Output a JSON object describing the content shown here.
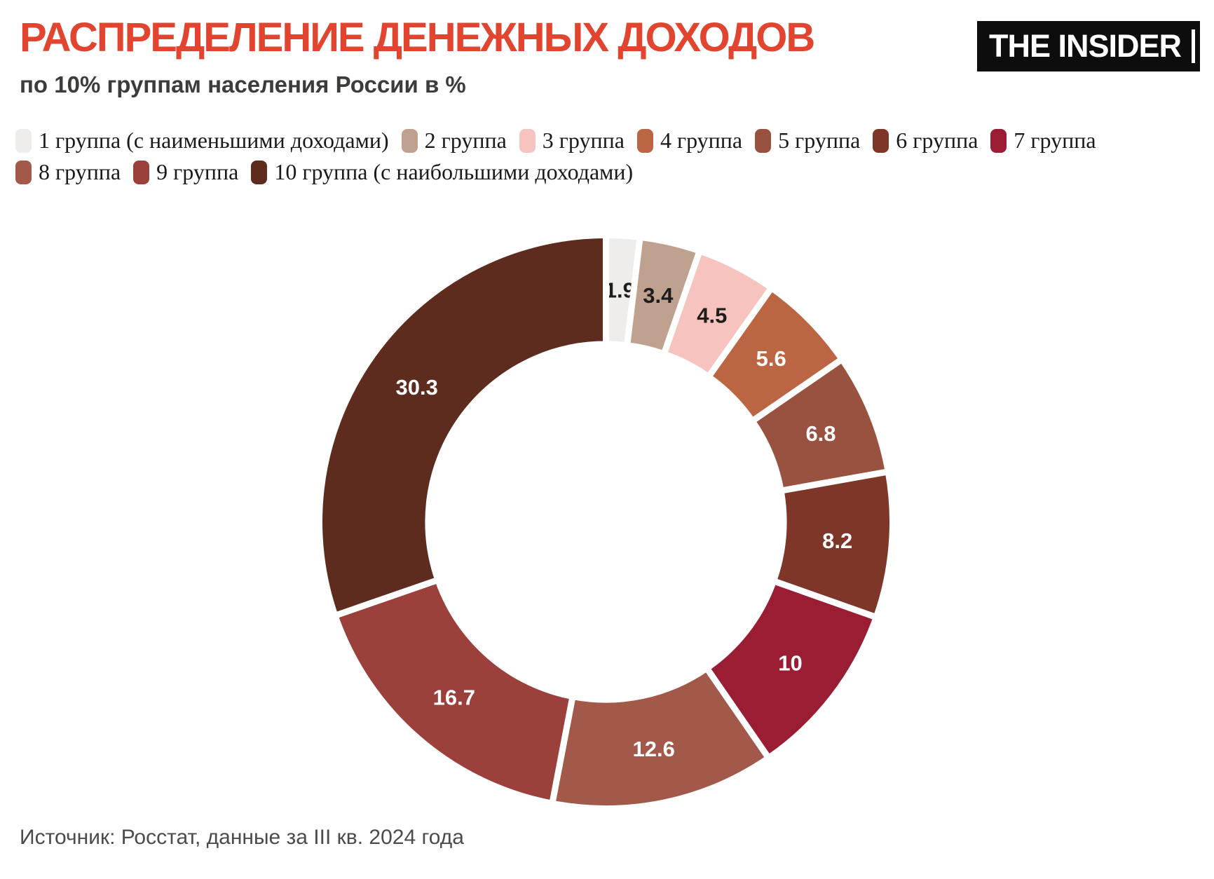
{
  "header": {
    "logo_text": "THE INSIDER"
  },
  "chart_data": {
    "type": "pie",
    "subtype": "donut",
    "title": "РАСПРЕДЕЛЕНИЕ ДЕНЕЖНЫХ ДОХОДОВ",
    "subtitle": "по 10% группам населения России в %",
    "units": "%",
    "categories": [
      "1 группа (с наименьшими доходами)",
      "2 группа",
      "3 группа",
      "4 группа",
      "5 группа",
      "6 группа",
      "7 группа",
      "8 группа",
      "9 группа",
      "10 группа (с наибольшими доходами)"
    ],
    "values": [
      1.9,
      3.4,
      4.5,
      5.6,
      6.8,
      8.2,
      10,
      12.6,
      16.7,
      30.3
    ],
    "labels": [
      "1.9",
      "3.4",
      "4.5",
      "5.6",
      "6.8",
      "8.2",
      "10",
      "12.6",
      "16.7",
      "30.3"
    ],
    "colors": [
      "#eeedeb",
      "#bfa190",
      "#f6c3be",
      "#bb6542",
      "#9a5240",
      "#7d3628",
      "#9b1d33",
      "#a2594a",
      "#9c403c",
      "#5e2c1e"
    ],
    "label_text_colors": [
      "#1d1d1b",
      "#1d1d1b",
      "#1d1d1b",
      "#ffffff",
      "#ffffff",
      "#ffffff",
      "#ffffff",
      "#ffffff",
      "#ffffff",
      "#ffffff"
    ],
    "start_angle_deg": 0,
    "direction": "clockwise",
    "inner_radius_ratio": 0.62,
    "legend_position": "top",
    "title_color": "#e2452f",
    "source": "Источник: Росстат, данные за III кв. 2024 года"
  }
}
